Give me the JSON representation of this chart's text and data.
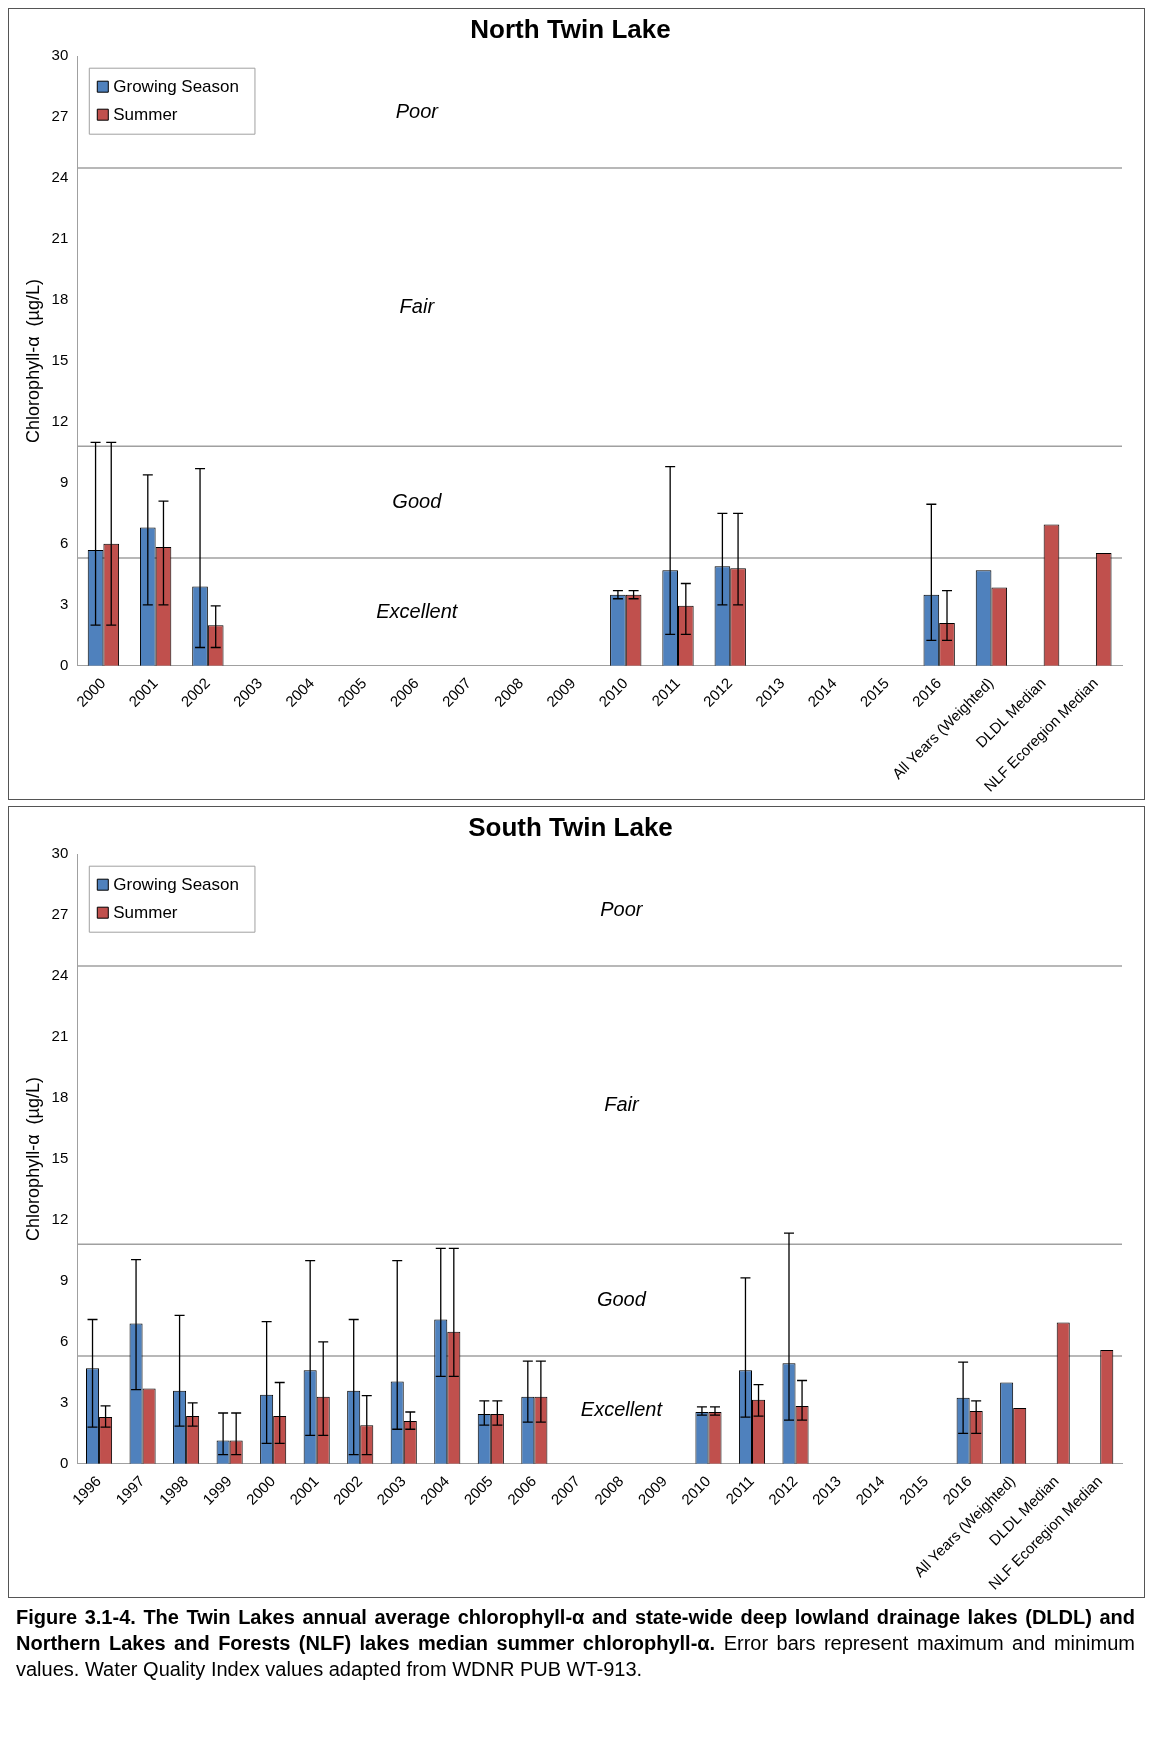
{
  "chart_data": [
    {
      "type": "bar",
      "title": "North Twin Lake",
      "ylabel": "Chlorophyll-α  (µg/L)",
      "categories": [
        "2000",
        "2001",
        "2002",
        "2003",
        "2004",
        "2005",
        "2006",
        "2007",
        "2008",
        "2009",
        "2010",
        "2011",
        "2012",
        "2013",
        "2014",
        "2015",
        "2016",
        "All Years (Weighted)",
        "DLDL Median",
        "NLF Ecoregion Median"
      ],
      "series": [
        {
          "name": "Growing Season",
          "color": "#4f81bd",
          "values": [
            5.7,
            6.8,
            3.9,
            null,
            null,
            null,
            null,
            null,
            null,
            null,
            3.5,
            4.7,
            4.9,
            null,
            null,
            null,
            3.5,
            4.7,
            null,
            null
          ],
          "errors": [
            [
              2.0,
              11.0
            ],
            [
              3.0,
              9.4
            ],
            [
              0.9,
              9.7
            ],
            null,
            null,
            null,
            null,
            null,
            null,
            null,
            [
              3.3,
              3.7
            ],
            [
              1.55,
              9.8
            ],
            [
              3.0,
              7.5
            ],
            null,
            null,
            null,
            [
              1.25,
              7.95
            ],
            null,
            null,
            null
          ]
        },
        {
          "name": "Summer",
          "color": "#c0504d",
          "values": [
            6.0,
            5.85,
            2.0,
            null,
            null,
            null,
            null,
            null,
            null,
            null,
            3.5,
            2.95,
            4.8,
            null,
            null,
            null,
            2.1,
            3.85,
            6.95,
            5.55
          ],
          "errors": [
            [
              2.0,
              11.0
            ],
            [
              3.0,
              8.1
            ],
            [
              0.9,
              2.95
            ],
            null,
            null,
            null,
            null,
            null,
            null,
            null,
            [
              3.3,
              3.7
            ],
            [
              1.55,
              4.05
            ],
            [
              3.0,
              7.5
            ],
            null,
            null,
            null,
            [
              1.25,
              3.7
            ],
            null,
            null,
            null
          ]
        }
      ],
      "ylim": [
        0,
        30
      ],
      "yticks": [
        0,
        3,
        6,
        9,
        12,
        15,
        18,
        21,
        24,
        27,
        30
      ],
      "grid": false,
      "legend": "top left",
      "ref_lines": [
        {
          "axis": "y",
          "value": 5.3
        },
        {
          "axis": "y",
          "value": 10.8
        },
        {
          "axis": "y",
          "value": 24.5
        }
      ],
      "annotations": [
        "Poor",
        "Fair",
        "Good",
        "Excellent"
      ]
    },
    {
      "type": "bar",
      "title": "South Twin Lake",
      "ylabel": "Chlorophyll-α  (µg/L)",
      "categories": [
        "1996",
        "1997",
        "1998",
        "1999",
        "2000",
        "2001",
        "2002",
        "2003",
        "2004",
        "2005",
        "2006",
        "2007",
        "2008",
        "2009",
        "2010",
        "2011",
        "2012",
        "2013",
        "2014",
        "2015",
        "2016",
        "All Years (Weighted)",
        "DLDL Median",
        "NLF Ecoregion Median"
      ],
      "series": [
        {
          "name": "Growing Season",
          "color": "#4f81bd",
          "values": [
            4.7,
            6.9,
            3.6,
            1.15,
            3.4,
            4.6,
            3.6,
            4.05,
            7.1,
            2.45,
            3.3,
            null,
            null,
            null,
            2.55,
            4.6,
            4.95,
            null,
            null,
            null,
            3.25,
            4.0,
            null,
            null
          ],
          "errors": [
            [
              1.8,
              7.1
            ],
            [
              3.65,
              10.05
            ],
            [
              1.85,
              7.3
            ],
            [
              0.45,
              2.5
            ],
            [
              1.0,
              7.0
            ],
            [
              1.4,
              10.0
            ],
            [
              0.45,
              7.1
            ],
            [
              1.7,
              10.0
            ],
            [
              4.3,
              10.6
            ],
            [
              1.9,
              3.1
            ],
            [
              2.05,
              5.05
            ],
            null,
            null,
            null,
            [
              2.4,
              2.8
            ],
            [
              2.3,
              9.15
            ],
            [
              2.15,
              11.35
            ],
            null,
            null,
            null,
            [
              1.5,
              5.0
            ],
            null,
            null,
            null
          ]
        },
        {
          "name": "Summer",
          "color": "#c0504d",
          "values": [
            2.3,
            3.7,
            2.35,
            1.15,
            2.35,
            3.3,
            1.9,
            2.1,
            6.5,
            2.45,
            3.3,
            null,
            null,
            null,
            2.55,
            3.15,
            2.85,
            null,
            null,
            null,
            2.6,
            2.75,
            6.95,
            5.6
          ],
          "errors": [
            [
              1.8,
              2.85
            ],
            null,
            [
              1.85,
              3.0
            ],
            [
              0.45,
              2.5
            ],
            [
              1.0,
              4.0
            ],
            [
              1.4,
              6.0
            ],
            [
              0.45,
              3.35
            ],
            [
              1.7,
              2.55
            ],
            [
              4.3,
              10.6
            ],
            [
              1.9,
              3.1
            ],
            [
              2.05,
              5.05
            ],
            null,
            null,
            null,
            [
              2.4,
              2.8
            ],
            [
              2.35,
              3.9
            ],
            [
              2.15,
              4.1
            ],
            null,
            null,
            null,
            [
              1.5,
              3.1
            ],
            null,
            null,
            null
          ]
        }
      ],
      "ylim": [
        0,
        30
      ],
      "yticks": [
        0,
        3,
        6,
        9,
        12,
        15,
        18,
        21,
        24,
        27,
        30
      ],
      "grid": false,
      "legend": "top left",
      "ref_lines": [
        {
          "axis": "y",
          "value": 5.3
        },
        {
          "axis": "y",
          "value": 10.8
        },
        {
          "axis": "y",
          "value": 24.5
        }
      ],
      "annotations": [
        "Poor",
        "Fair",
        "Good",
        "Excellent",
        "Figure 3.1-4.  The Twin Lakes annual average chlorophyll-α and state-wide deep lowland drainage lakes (DLDL) and Northern Lakes and Forests (NLF) lakes median summer chlorophyll-α.",
        "Error bars represent maximum and minimum values.  Water Quality Index values adapted from WDNR PUB WT-913."
      ]
    }
  ]
}
